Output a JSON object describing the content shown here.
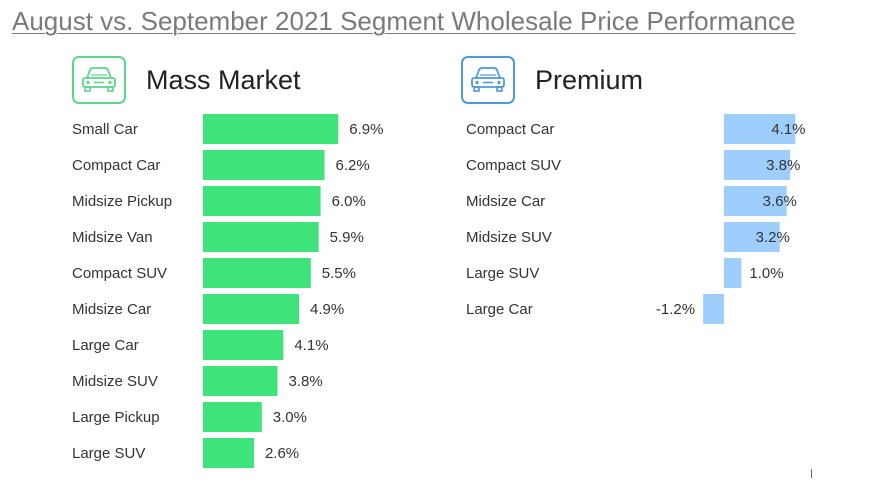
{
  "title": "August vs. September 2021 Segment Wholesale Price Performance",
  "colors": {
    "mass": "#3ee47a",
    "premium": "#9ecffc",
    "mass_icon": "#5ed58a",
    "premium_icon": "#4d98de"
  },
  "panels": [
    {
      "title": "Mass Market",
      "icon": "car-icon"
    },
    {
      "title": "Premium",
      "icon": "car-icon"
    }
  ],
  "chart_data": [
    {
      "type": "bar",
      "orientation": "horizontal",
      "title": "Mass Market",
      "categories": [
        "Small Car",
        "Compact Car",
        "Midsize Pickup",
        "Midsize Van",
        "Compact SUV",
        "Midsize Car",
        "Large Car",
        "Midsize SUV",
        "Large Pickup",
        "Large SUV"
      ],
      "values": [
        6.9,
        6.2,
        6.0,
        5.9,
        5.5,
        4.9,
        4.1,
        3.8,
        3.0,
        2.6
      ],
      "labels": [
        "6.9%",
        "6.2%",
        "6.0%",
        "5.9%",
        "5.5%",
        "4.9%",
        "4.1%",
        "3.8%",
        "3.0%",
        "2.6%"
      ],
      "unit": "%",
      "grid": false,
      "legend": "none"
    },
    {
      "type": "bar",
      "orientation": "horizontal",
      "title": "Premium",
      "categories": [
        "Compact Car",
        "Compact SUV",
        "Midsize Car",
        "Midsize SUV",
        "Large SUV",
        "Large Car"
      ],
      "values": [
        4.1,
        3.8,
        3.6,
        3.2,
        1.0,
        -1.2
      ],
      "labels": [
        "4.1%",
        "3.8%",
        "3.6%",
        "3.2%",
        "1.0%",
        "-1.2%"
      ],
      "unit": "%",
      "grid": false,
      "legend": "none"
    }
  ]
}
